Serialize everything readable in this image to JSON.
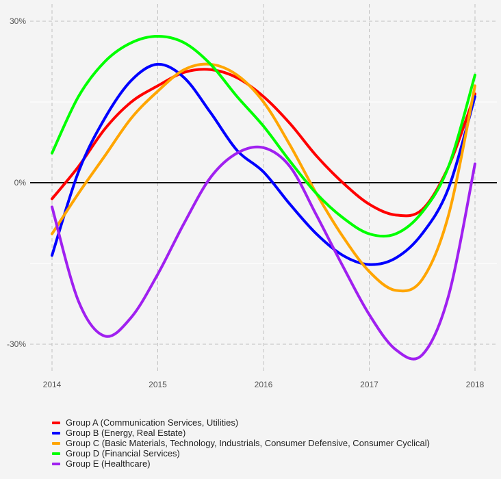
{
  "chart_data": {
    "type": "line",
    "title": "",
    "xlabel": "",
    "ylabel": "",
    "xlim": [
      2014,
      2018
    ],
    "ylim": [
      -30,
      30
    ],
    "x_ticks": [
      2014,
      2015,
      2016,
      2017,
      2018
    ],
    "x_tick_labels": [
      "2014",
      "2015",
      "2016",
      "2017",
      "2018"
    ],
    "y_ticks": [
      -30,
      0,
      30
    ],
    "y_tick_labels": [
      "-30%",
      "0%",
      "30%"
    ],
    "zero_line": true,
    "grid": true,
    "legend_position": "bottom-left",
    "series": [
      {
        "name": "Group A (Communication Services, Utilities)",
        "color": "#ff0000",
        "x": [
          2014,
          2014.25,
          2014.5,
          2014.75,
          2015,
          2015.25,
          2015.5,
          2015.75,
          2016,
          2016.25,
          2016.5,
          2016.75,
          2017,
          2017.25,
          2017.5,
          2017.75,
          2018
        ],
        "values": [
          -3,
          3,
          10,
          15,
          18,
          20.5,
          21,
          19.5,
          16,
          11,
          5,
          0,
          -4,
          -6,
          -5,
          3,
          16.5
        ]
      },
      {
        "name": "Group B (Energy, Real Estate)",
        "color": "#0000ff",
        "x": [
          2014,
          2014.25,
          2014.5,
          2014.75,
          2015,
          2015.25,
          2015.5,
          2015.75,
          2016,
          2016.25,
          2016.5,
          2016.75,
          2017,
          2017.25,
          2017.5,
          2017.75,
          2018
        ],
        "values": [
          -13.5,
          2,
          12,
          19,
          22,
          19.5,
          13,
          6,
          2,
          -4,
          -9.5,
          -13.5,
          -15.2,
          -14,
          -9.5,
          -1,
          16
        ]
      },
      {
        "name": "Group C (Basic Materials, Technology, Industrials, Consumer Defensive, Consumer Cyclical)",
        "color": "#ffa500",
        "x": [
          2014,
          2014.25,
          2014.5,
          2014.75,
          2015,
          2015.25,
          2015.5,
          2015.75,
          2016,
          2016.25,
          2016.5,
          2016.75,
          2017,
          2017.25,
          2017.5,
          2017.75,
          2018
        ],
        "values": [
          -9.5,
          -2,
          5,
          12,
          17,
          21,
          22,
          20,
          15,
          7,
          -2,
          -10,
          -16.5,
          -20,
          -18,
          -6,
          18
        ]
      },
      {
        "name": "Group D (Financial Services)",
        "color": "#00ff00",
        "x": [
          2014,
          2014.25,
          2014.5,
          2014.75,
          2015,
          2015.25,
          2015.5,
          2015.75,
          2016,
          2016.25,
          2016.5,
          2016.75,
          2017,
          2017.25,
          2017.5,
          2017.75,
          2018
        ],
        "values": [
          5.5,
          16,
          22.5,
          26,
          27.2,
          26,
          22,
          16,
          10.5,
          4,
          -2,
          -6.5,
          -9.5,
          -9.5,
          -5.5,
          3,
          20
        ]
      },
      {
        "name": "Group E (Healthcare)",
        "color": "#a020f0",
        "x": [
          2014,
          2014.25,
          2014.5,
          2014.75,
          2015,
          2015.25,
          2015.5,
          2015.75,
          2016,
          2016.25,
          2016.5,
          2016.75,
          2017,
          2017.25,
          2017.5,
          2017.75,
          2018
        ],
        "values": [
          -4.5,
          -22,
          -28.5,
          -25,
          -17,
          -7.5,
          1,
          5.5,
          6.5,
          3,
          -6,
          -15.5,
          -24.5,
          -31,
          -32,
          -21,
          3.5
        ]
      }
    ]
  }
}
